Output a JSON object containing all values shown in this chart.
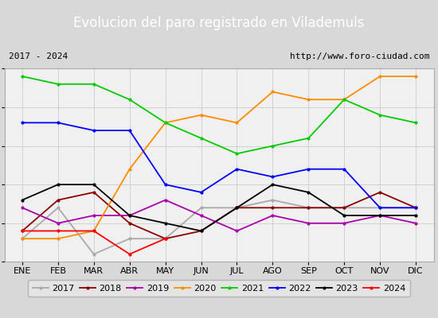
{
  "title": "Evolucion del paro registrado en Vilademuls",
  "subtitle_left": "2017 - 2024",
  "subtitle_right": "http://www.foro-ciudad.com",
  "months": [
    "ENE",
    "FEB",
    "MAR",
    "ABR",
    "MAY",
    "JUN",
    "JUL",
    "AGO",
    "SEP",
    "OCT",
    "NOV",
    "DIC"
  ],
  "series": {
    "2017": {
      "color": "#aaaaaa",
      "data": [
        23,
        27,
        21,
        23,
        23,
        27,
        27,
        28,
        27,
        27,
        27,
        27
      ]
    },
    "2018": {
      "color": "#8b0000",
      "data": [
        24,
        28,
        29,
        25,
        23,
        24,
        27,
        27,
        27,
        27,
        29,
        27
      ]
    },
    "2019": {
      "color": "#aa00aa",
      "data": [
        27,
        25,
        26,
        26,
        28,
        26,
        24,
        26,
        25,
        25,
        26,
        25
      ]
    },
    "2020": {
      "color": "#ff8c00",
      "data": [
        23,
        23,
        24,
        32,
        38,
        39,
        38,
        42,
        41,
        41,
        44,
        44
      ]
    },
    "2021": {
      "color": "#00cc00",
      "data": [
        44,
        43,
        43,
        41,
        38,
        36,
        34,
        35,
        36,
        41,
        39,
        38
      ]
    },
    "2022": {
      "color": "#0000ff",
      "data": [
        38,
        38,
        37,
        37,
        30,
        29,
        32,
        31,
        32,
        32,
        27,
        27
      ]
    },
    "2023": {
      "color": "#000000",
      "data": [
        28,
        30,
        30,
        26,
        25,
        24,
        27,
        30,
        29,
        26,
        26,
        26
      ]
    },
    "2024": {
      "color": "#ff0000",
      "data": [
        24,
        24,
        24,
        21,
        23,
        null,
        null,
        null,
        null,
        null,
        null,
        null
      ]
    }
  },
  "ylim": [
    20,
    45
  ],
  "yticks": [
    20,
    25,
    30,
    35,
    40,
    45
  ],
  "bg_color": "#d8d8d8",
  "plot_bg_color": "#f0f0f0",
  "title_bg_color": "#4a7abf",
  "title_text_color": "#ffffff",
  "legend_bg_color": "#e8e8e8",
  "header_bg_color": "#e0e0e0",
  "title_fontsize": 12,
  "subtitle_fontsize": 8,
  "tick_fontsize": 8,
  "legend_fontsize": 8
}
